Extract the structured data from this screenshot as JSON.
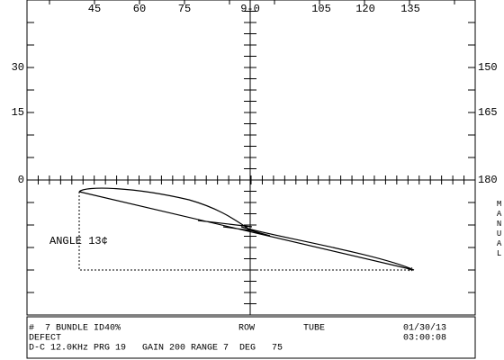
{
  "top_scale": [
    "45",
    "60",
    "75",
    "9-0",
    "105",
    "120",
    "135"
  ],
  "left_scale": [
    "30",
    "15",
    "0"
  ],
  "right_scale": [
    "150",
    "165",
    "180"
  ],
  "side_label": "MANUAL",
  "annotation": "ANGLE 13¢",
  "footer": {
    "line1": "#  7 BUNDLE ID40%",
    "row": "ROW",
    "tube": "TUBE",
    "date": "01/30/13",
    "line2": "DEFECT",
    "time": "03:00:08",
    "line3": "D-C 12.0KHz PRG 19   GAIN 200 RANGE 7  DEG   75"
  }
}
